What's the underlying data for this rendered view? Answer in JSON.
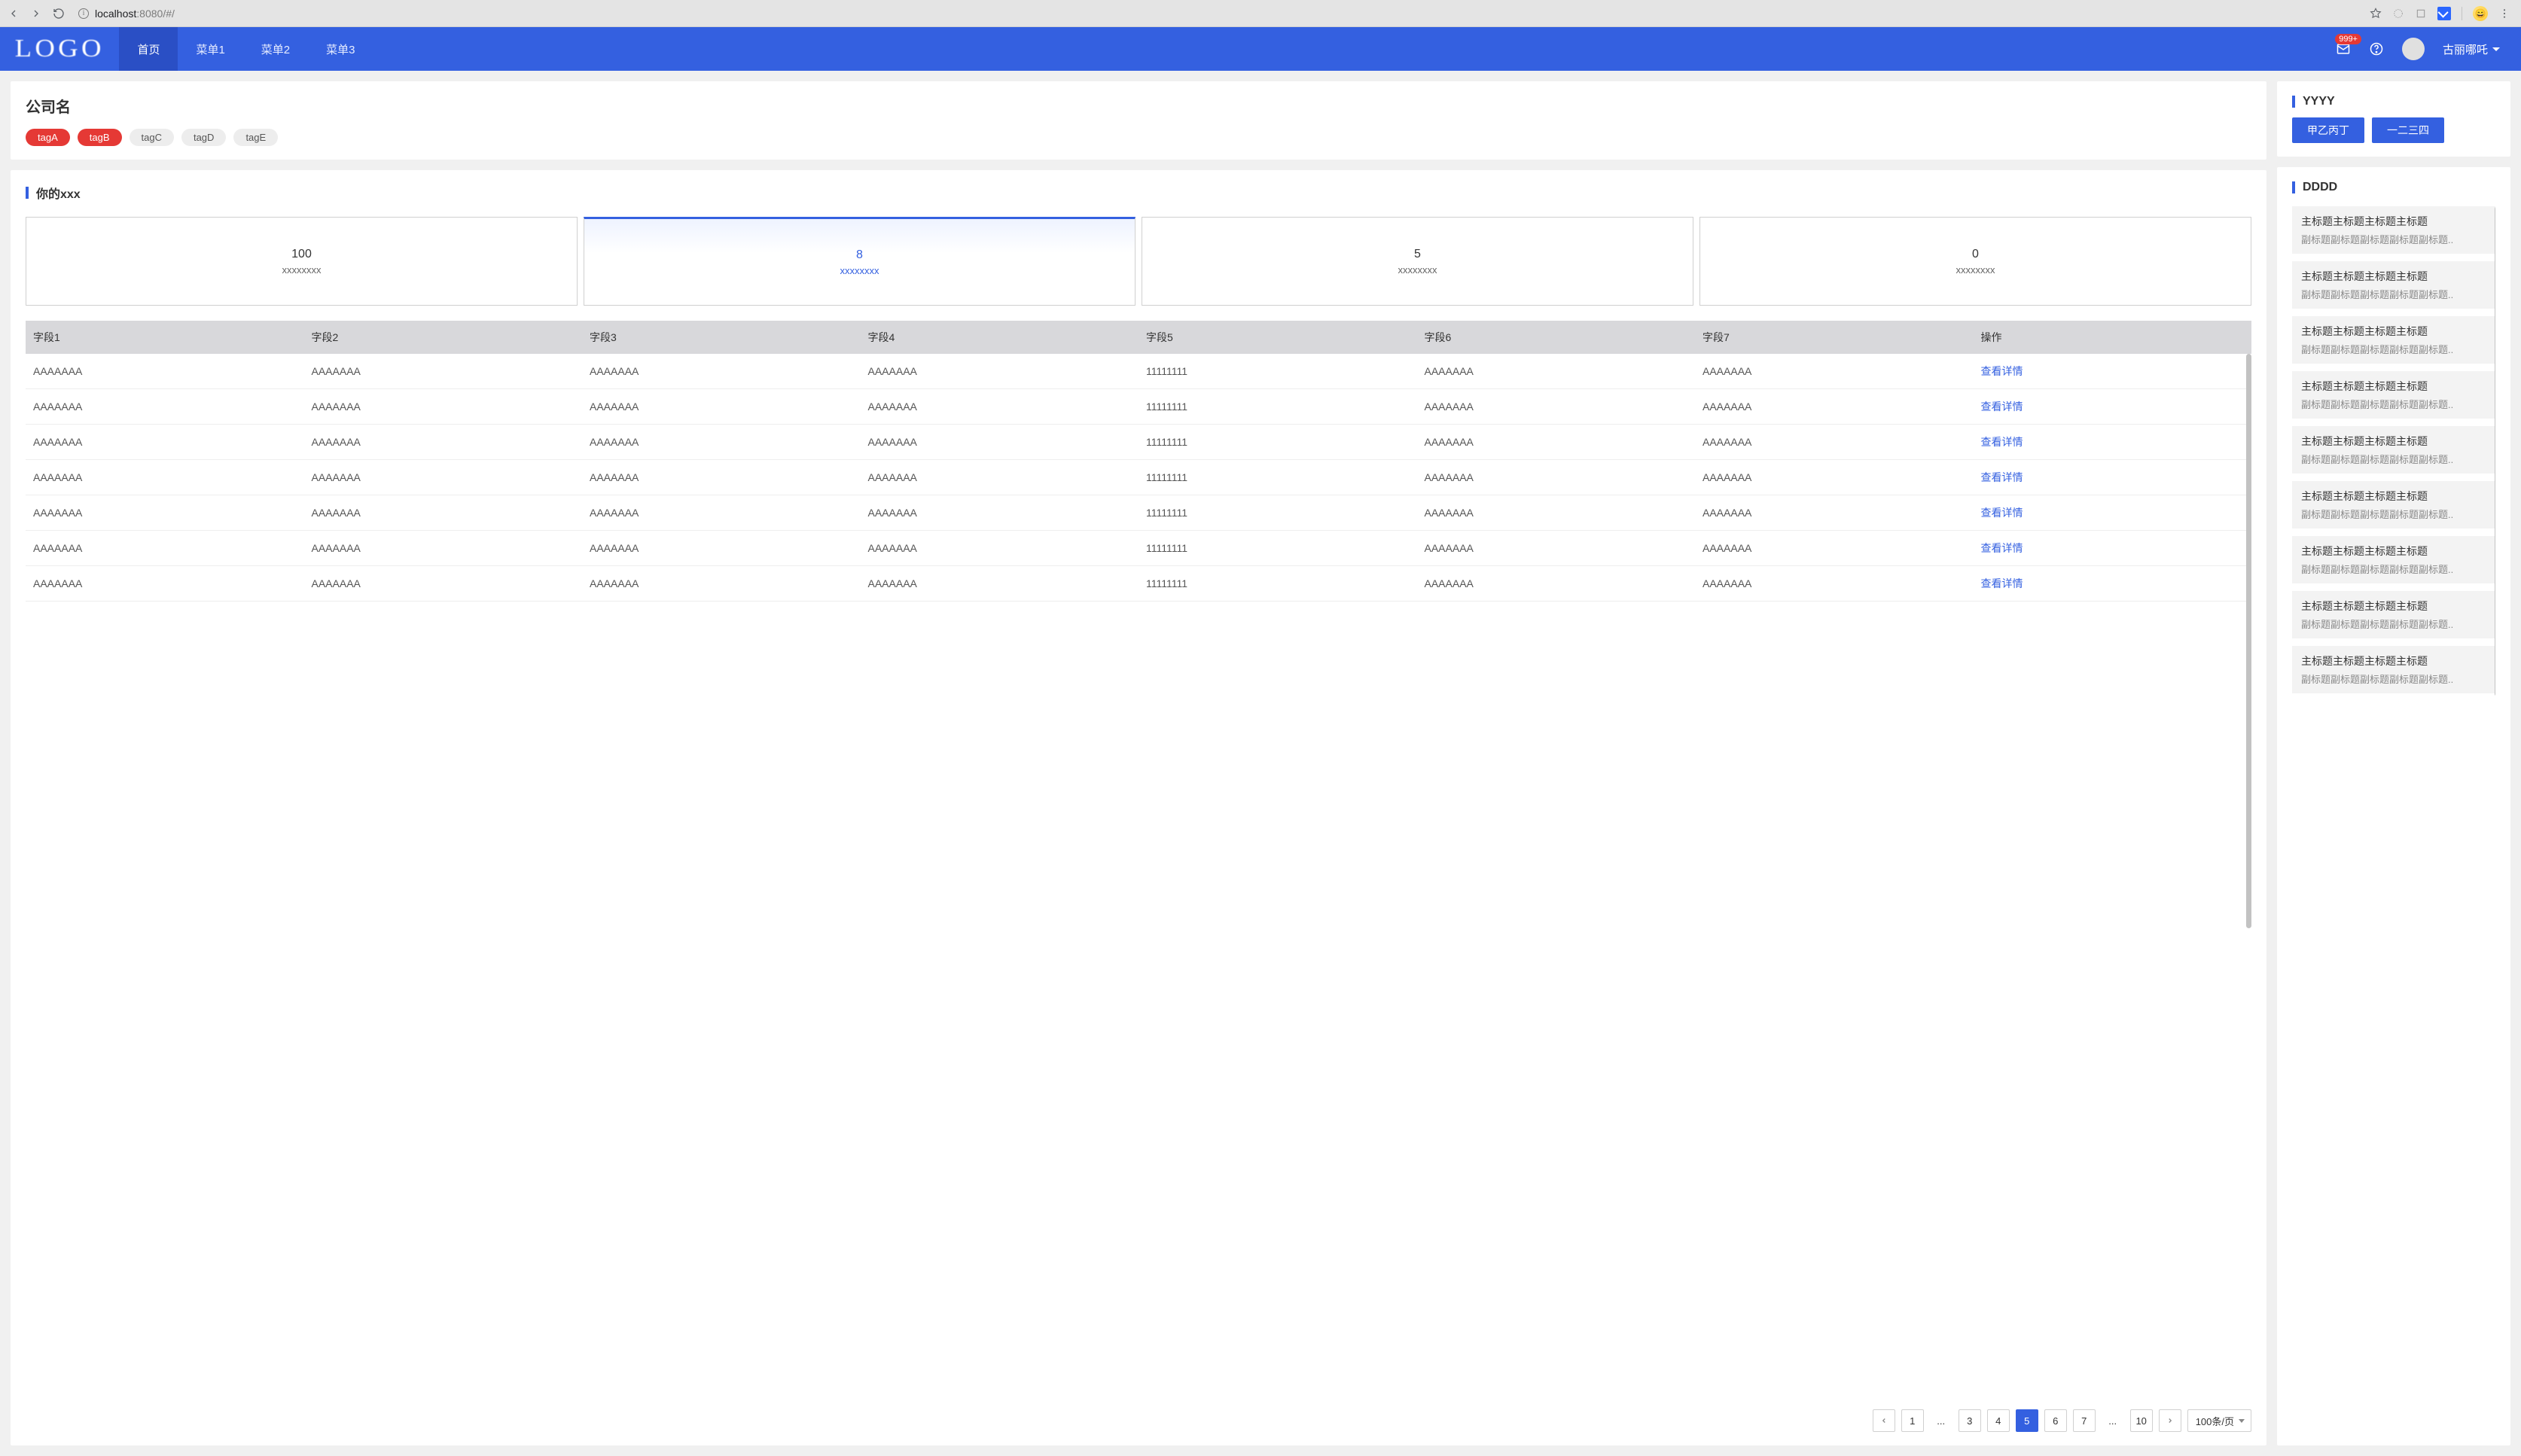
{
  "browser": {
    "url_host": "localhost",
    "url_port": ":8080",
    "url_path": "/#/"
  },
  "header": {
    "logo": "LOGO",
    "nav": [
      "首页",
      "菜单1",
      "菜单2",
      "菜单3"
    ],
    "nav_active_index": 0,
    "mail_badge": "999+",
    "username": "古丽哪吒"
  },
  "company_card": {
    "name": "公司名",
    "tags": [
      {
        "label": "tagA",
        "red": true
      },
      {
        "label": "tagB",
        "red": true
      },
      {
        "label": "tagC",
        "red": false
      },
      {
        "label": "tagD",
        "red": false
      },
      {
        "label": "tagE",
        "red": false
      }
    ]
  },
  "main": {
    "title": "你的xxx",
    "stats": [
      {
        "num": "100",
        "label": "xxxxxxxx",
        "active": false
      },
      {
        "num": "8",
        "label": "xxxxxxxx",
        "active": true
      },
      {
        "num": "5",
        "label": "xxxxxxxx",
        "active": false
      },
      {
        "num": "0",
        "label": "xxxxxxxx",
        "active": false
      }
    ],
    "columns": [
      "字段1",
      "字段2",
      "字段3",
      "字段4",
      "字段5",
      "字段6",
      "字段7",
      "操作"
    ],
    "action_label": "查看详情",
    "rows": [
      [
        "AAAAAAA",
        "AAAAAAA",
        "AAAAAAA",
        "AAAAAAA",
        "11111111",
        "AAAAAAA",
        "AAAAAAA"
      ],
      [
        "AAAAAAA",
        "AAAAAAA",
        "AAAAAAA",
        "AAAAAAA",
        "11111111",
        "AAAAAAA",
        "AAAAAAA"
      ],
      [
        "AAAAAAA",
        "AAAAAAA",
        "AAAAAAA",
        "AAAAAAA",
        "11111111",
        "AAAAAAA",
        "AAAAAAA"
      ],
      [
        "AAAAAAA",
        "AAAAAAA",
        "AAAAAAA",
        "AAAAAAA",
        "11111111",
        "AAAAAAA",
        "AAAAAAA"
      ],
      [
        "AAAAAAA",
        "AAAAAAA",
        "AAAAAAA",
        "AAAAAAA",
        "11111111",
        "AAAAAAA",
        "AAAAAAA"
      ],
      [
        "AAAAAAA",
        "AAAAAAA",
        "AAAAAAA",
        "AAAAAAA",
        "11111111",
        "AAAAAAA",
        "AAAAAAA"
      ],
      [
        "AAAAAAA",
        "AAAAAAA",
        "AAAAAAA",
        "AAAAAAA",
        "11111111",
        "AAAAAAA",
        "AAAAAAA"
      ]
    ],
    "pager": {
      "pages": [
        "1",
        "...",
        "3",
        "4",
        "5",
        "6",
        "7",
        "...",
        "10"
      ],
      "active": "5",
      "page_size_label": "100条/页"
    }
  },
  "right": {
    "yyyy": {
      "title": "YYYY",
      "buttons": [
        "甲乙丙丁",
        "一二三四"
      ]
    },
    "dddd": {
      "title": "DDDD",
      "item_title": "主标题主标题主标题主标题",
      "item_sub": "副标题副标题副标题副标题副标题..",
      "count": 9
    }
  },
  "colors": {
    "primary": "#3460e0",
    "danger": "#e53935",
    "header_active": "#2a4fc5",
    "tag_gray_bg": "#ededed",
    "table_header_bg": "#d8d8db",
    "list_item_bg": "#f3f3f3"
  }
}
